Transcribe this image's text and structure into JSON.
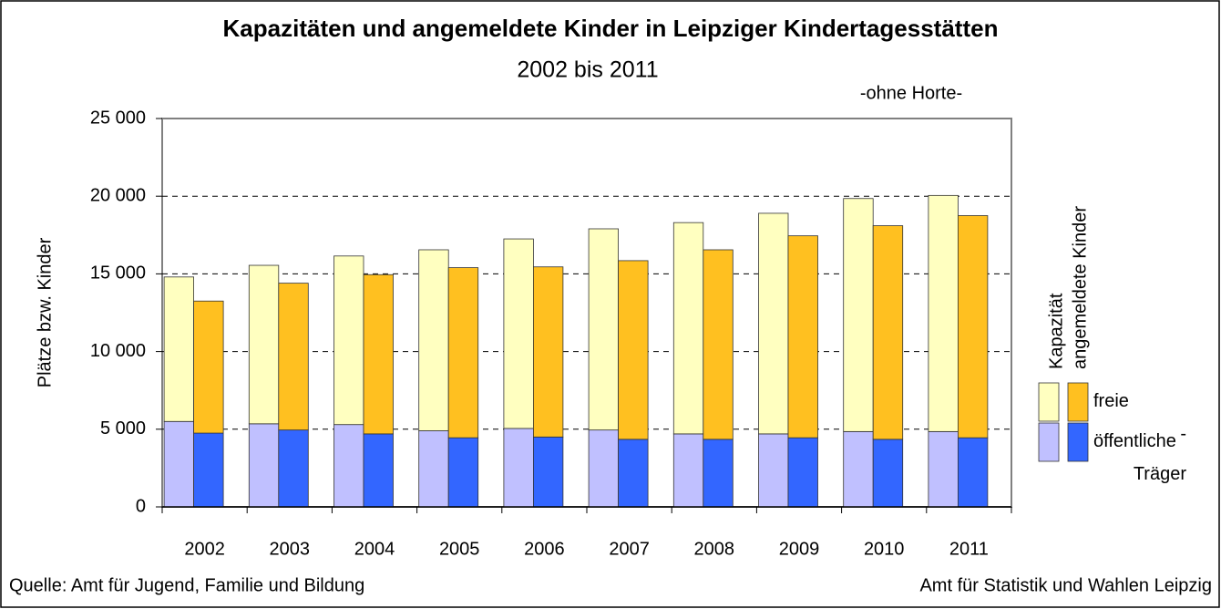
{
  "chart_data": {
    "type": "grouped-stacked-bar",
    "title": "Kapazitäten und angemeldete Kinder in Leipziger Kindertagesstätten",
    "subtitle": "2002 bis 2011",
    "note": "-ohne Horte-",
    "y_label": "Plätze bzw. Kinder",
    "source": "Quelle: Amt für Jugend, Familie und Bildung",
    "publisher": "Amt für Statistik und Wahlen Leipzig",
    "categories": [
      "2002",
      "2003",
      "2004",
      "2005",
      "2006",
      "2007",
      "2008",
      "2009",
      "2010",
      "2011"
    ],
    "groups": [
      {
        "name": "Kapazität",
        "series": [
          {
            "name": "öffentliche Träger",
            "color": "#c0c0ff",
            "values": [
              5500,
              5350,
              5300,
              4900,
              5050,
              4950,
              4700,
              4700,
              4850,
              4850
            ]
          },
          {
            "name": "freie -",
            "color": "#ffffc0",
            "values": [
              9300,
              10200,
              10850,
              11650,
              12200,
              12950,
              13600,
              14200,
              15000,
              15200
            ]
          }
        ]
      },
      {
        "name": "angemeldete Kinder",
        "series": [
          {
            "name": "öffentliche Träger",
            "color": "#3366ff",
            "values": [
              4750,
              4950,
              4700,
              4450,
              4500,
              4350,
              4350,
              4450,
              4350,
              4450
            ]
          },
          {
            "name": "freie -",
            "color": "#ffc020",
            "values": [
              8500,
              9450,
              10250,
              10950,
              10950,
              11500,
              12200,
              13000,
              13750,
              14300
            ]
          }
        ]
      }
    ],
    "ylim": [
      0,
      25000
    ],
    "yticks": [
      0,
      {
        "value": 5000,
        "label": "5 000"
      },
      {
        "value": 10000,
        "label": "10 000"
      },
      {
        "value": 15000,
        "label": "15 000"
      },
      {
        "value": 20000,
        "label": "20 000"
      },
      {
        "value": 25000,
        "label": "25 000"
      }
    ],
    "grid": true
  }
}
